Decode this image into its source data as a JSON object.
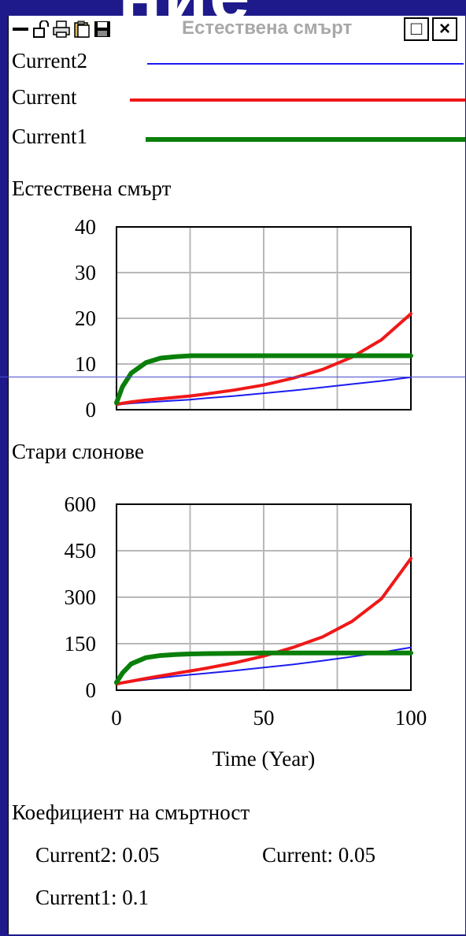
{
  "background_text": "ние",
  "window": {
    "title": "Естествена смърт",
    "icons": [
      "minimize-dash-icon",
      "lock-icon",
      "print-icon",
      "clipboard-icon",
      "save-disk-icon"
    ],
    "maximize_label": "□",
    "close_label": "×"
  },
  "legend": [
    {
      "name": "Current2",
      "color": "#1c1cf0",
      "width": 2
    },
    {
      "name": "Current",
      "color": "#f01818",
      "width": 4
    },
    {
      "name": "Current1",
      "color": "#0a7f0a",
      "width": 6
    }
  ],
  "chart_data": [
    {
      "type": "line",
      "title": "Естествена смърт",
      "x": [
        0,
        2,
        5,
        10,
        15,
        20,
        25,
        30,
        40,
        50,
        60,
        70,
        80,
        90,
        100
      ],
      "xlim": [
        0,
        100
      ],
      "ylim": [
        0,
        40
      ],
      "yticks": [
        0,
        10,
        20,
        30,
        40
      ],
      "grid": true,
      "series": [
        {
          "name": "Current2",
          "color": "#1c1cf0",
          "values": [
            1,
            1.2,
            1.4,
            1.6,
            1.8,
            2.0,
            2.2,
            2.5,
            3.0,
            3.6,
            4.2,
            4.9,
            5.6,
            6.3,
            7.1
          ]
        },
        {
          "name": "Current",
          "color": "#f01818",
          "values": [
            1.2,
            1.4,
            1.7,
            2.1,
            2.4,
            2.7,
            3.0,
            3.4,
            4.3,
            5.4,
            6.9,
            8.8,
            11.5,
            15.3,
            21.0
          ]
        },
        {
          "name": "Current1",
          "color": "#0a7f0a",
          "values": [
            1.5,
            5.0,
            8.0,
            10.3,
            11.3,
            11.6,
            11.8,
            11.8,
            11.8,
            11.8,
            11.8,
            11.8,
            11.8,
            11.8,
            11.8
          ]
        }
      ]
    },
    {
      "type": "line",
      "title": "Стари слонове",
      "x": [
        0,
        2,
        5,
        10,
        15,
        20,
        25,
        30,
        40,
        50,
        60,
        70,
        80,
        90,
        100
      ],
      "xlim": [
        0,
        100
      ],
      "ylim": [
        0,
        600
      ],
      "yticks": [
        0,
        150,
        300,
        450,
        600
      ],
      "xticks": [
        0,
        50,
        100
      ],
      "xlabel": "Time (Year)",
      "grid": true,
      "series": [
        {
          "name": "Current2",
          "color": "#1c1cf0",
          "values": [
            18,
            22,
            27,
            34,
            40,
            45,
            50,
            54,
            63,
            73,
            83,
            95,
            108,
            122,
            138
          ]
        },
        {
          "name": "Current",
          "color": "#f01818",
          "values": [
            20,
            24,
            29,
            38,
            46,
            54,
            62,
            70,
            88,
            110,
            138,
            172,
            222,
            295,
            425
          ]
        },
        {
          "name": "Current1",
          "color": "#0a7f0a",
          "values": [
            25,
            55,
            85,
            105,
            112,
            115,
            117,
            118,
            119,
            120,
            120,
            120,
            120,
            120,
            120
          ]
        }
      ]
    }
  ],
  "coefficient": {
    "title": "Коефициент на смъртност",
    "current2": "Current2: 0.05",
    "current": "Current: 0.05",
    "current1": "Current1: 0.1"
  }
}
